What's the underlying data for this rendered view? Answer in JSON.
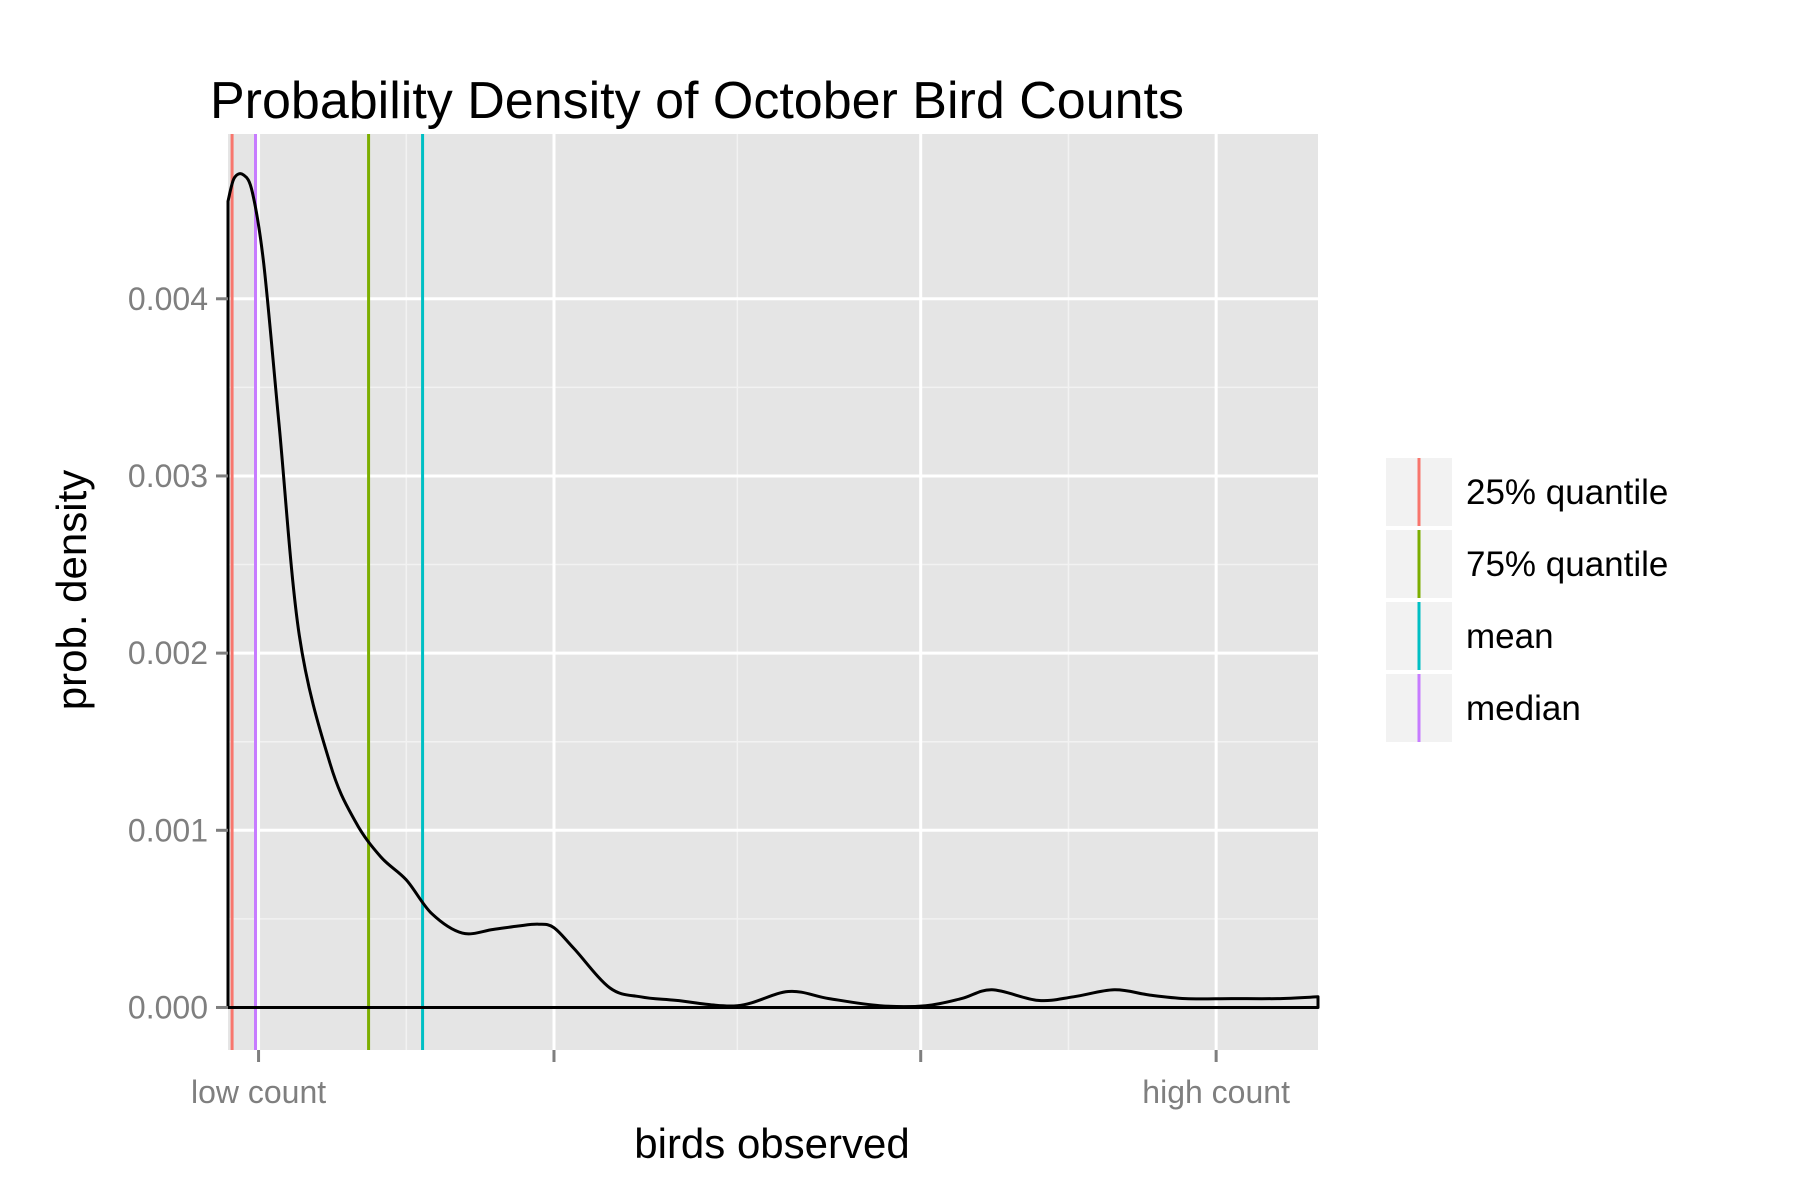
{
  "chart_data": {
    "type": "line",
    "title": "Probability Density of October Bird Counts",
    "xlabel": "birds observed",
    "ylabel": "prob. density",
    "xlim": [
      -0.03,
      1.04
    ],
    "ylim": [
      -0.00024,
      0.00493
    ],
    "x_ticks": [
      {
        "value": 0.0,
        "label": "low count"
      },
      {
        "value": 0.29,
        "label": ""
      },
      {
        "value": 0.65,
        "label": ""
      },
      {
        "value": 0.94,
        "label": "high count"
      }
    ],
    "y_ticks": [
      {
        "value": 0.0,
        "label": "0.000"
      },
      {
        "value": 0.001,
        "label": "0.001"
      },
      {
        "value": 0.002,
        "label": "0.002"
      },
      {
        "value": 0.003,
        "label": "0.003"
      },
      {
        "value": 0.004,
        "label": "0.004"
      }
    ],
    "grid": true,
    "legend_position": "right",
    "series": [
      {
        "color": "#000000",
        "x": [
          -0.03,
          -0.024,
          -0.015,
          -0.006,
          0.005,
          0.02,
          0.04,
          0.07,
          0.095,
          0.12,
          0.145,
          0.17,
          0.2,
          0.23,
          0.255,
          0.275,
          0.29,
          0.31,
          0.345,
          0.375,
          0.41,
          0.47,
          0.52,
          0.56,
          0.61,
          0.655,
          0.69,
          0.72,
          0.765,
          0.8,
          0.84,
          0.875,
          0.91,
          0.955,
          1.0,
          1.04
        ],
        "values": [
          0.00455,
          0.00468,
          0.0047,
          0.0046,
          0.0042,
          0.0033,
          0.0021,
          0.00138,
          0.00105,
          0.00085,
          0.00072,
          0.00053,
          0.00042,
          0.00044,
          0.00046,
          0.00047,
          0.00045,
          0.00033,
          0.00011,
          6e-05,
          4e-05,
          1e-05,
          9e-05,
          5e-05,
          1e-05,
          1e-05,
          5e-05,
          0.0001,
          4e-05,
          6e-05,
          0.0001,
          7e-05,
          5e-05,
          5e-05,
          5e-05,
          6e-05
        ]
      }
    ],
    "vlines": [
      {
        "name": "25% quantile",
        "value": -0.026,
        "color": "#F8766D"
      },
      {
        "name": "75% quantile",
        "value": 0.108,
        "color": "#7CAE00"
      },
      {
        "name": "mean",
        "value": 0.161,
        "color": "#00BFC4"
      },
      {
        "name": "median",
        "value": -0.003,
        "color": "#C77CFF"
      }
    ],
    "colors": {
      "panel": "#E5E5E5",
      "grid_major": "#FFFFFF",
      "grid_minor": "#F2F2F2",
      "legend_key_bg": "#F2F2F2"
    }
  }
}
